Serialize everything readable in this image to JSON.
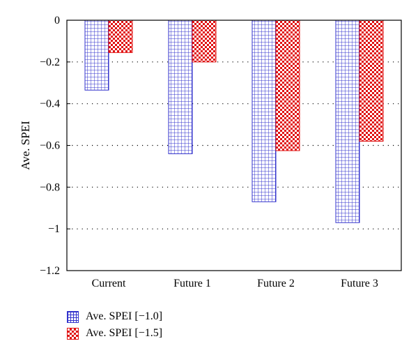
{
  "chart_data": {
    "type": "bar",
    "title": "",
    "xlabel": "",
    "ylabel": "Ave. SPEI",
    "categories": [
      "Current",
      "Future 1",
      "Future 2",
      "Future 3"
    ],
    "series": [
      {
        "name": "Ave. SPEI [−1.0]",
        "values": [
          -0.335,
          -0.64,
          -0.87,
          -0.97
        ],
        "color": "#3333cc",
        "pattern": "grid"
      },
      {
        "name": "Ave. SPEI [−1.5]",
        "values": [
          -0.155,
          -0.2,
          -0.625,
          -0.58
        ],
        "color": "#e01010",
        "pattern": "checker"
      }
    ],
    "ylim": [
      -1.2,
      0
    ],
    "yticks": [
      0,
      -0.2,
      -0.4,
      -0.6,
      -0.8,
      -1,
      -1.2
    ],
    "ytick_labels": [
      "0",
      "−0.2",
      "−0.4",
      "−0.6",
      "−0.8",
      "−1",
      "−1.2"
    ],
    "grid": "horizontal dotted",
    "legend_position": "bottom-left"
  }
}
